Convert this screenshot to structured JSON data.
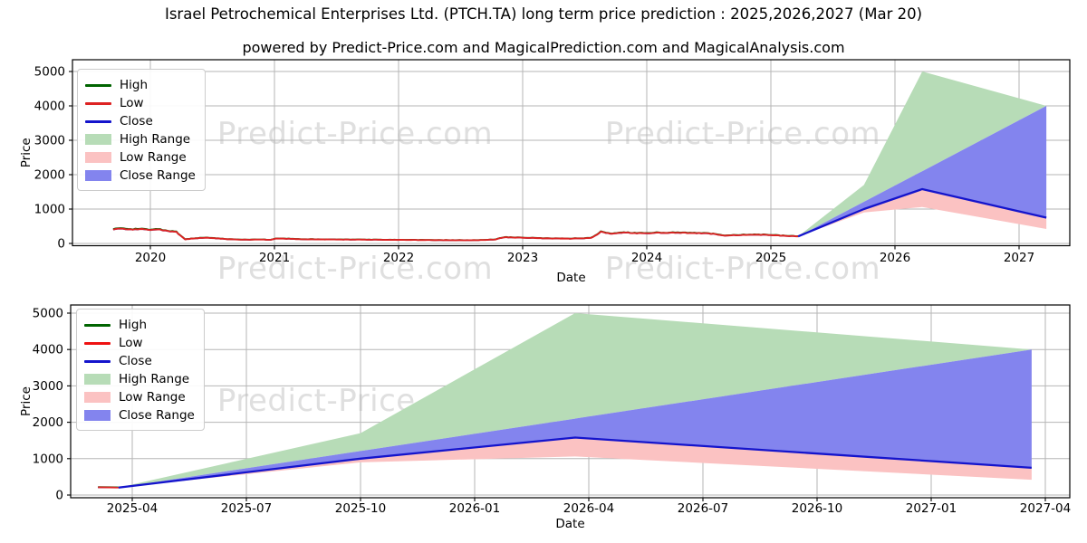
{
  "header": {
    "title": "Israel Petrochemical Enterprises Ltd. (PTCH.TA) long term price prediction : 2025,2026,2027 (Mar 20)",
    "subtitle": "powered by Predict-Price.com and MagicalPrediction.com and MagicalAnalysis.com"
  },
  "watermark": {
    "text": "Predict-Price.com",
    "color": "#dfdfdf"
  },
  "colors": {
    "high_line": "#006400",
    "low_line": "#dd2222",
    "close_line": "#1414cc",
    "high_range_fill": "#b7dcb7",
    "low_range_fill": "#fbc2c2",
    "close_range_fill": "#8384ee",
    "grid": "#b6b6b6",
    "spine": "#000000"
  },
  "chart_data": [
    {
      "type": "line",
      "name": "long-term-history-and-prediction",
      "xlabel": "Date",
      "ylabel": "Price",
      "ylim": [
        0,
        5000
      ],
      "grid": true,
      "legend_position": "upper left",
      "yticks": [
        {
          "v": 0,
          "label": "0"
        },
        {
          "v": 1000,
          "label": "1000"
        },
        {
          "v": 2000,
          "label": "2000"
        },
        {
          "v": 3000,
          "label": "3000"
        },
        {
          "v": 4000,
          "label": "4000"
        },
        {
          "v": 5000,
          "label": "5000"
        }
      ],
      "xticks": [
        {
          "v": 2020,
          "label": "2020"
        },
        {
          "v": 2021,
          "label": "2021"
        },
        {
          "v": 2022,
          "label": "2022"
        },
        {
          "v": 2023,
          "label": "2023"
        },
        {
          "v": 2024,
          "label": "2024"
        },
        {
          "v": 2025,
          "label": "2025"
        },
        {
          "v": 2026,
          "label": "2026"
        },
        {
          "v": 2027,
          "label": "2027"
        }
      ],
      "legend": [
        {
          "label": "High",
          "type": "line",
          "color": "#006400"
        },
        {
          "label": "Low",
          "type": "line",
          "color": "#dd2222"
        },
        {
          "label": "Close",
          "type": "line",
          "color": "#1414cc"
        },
        {
          "label": "High Range",
          "type": "patch",
          "color": "#b7dcb7"
        },
        {
          "label": "Low Range",
          "type": "patch",
          "color": "#fbc2c2"
        },
        {
          "label": "Close Range",
          "type": "patch",
          "color": "#8384ee"
        }
      ],
      "history_anchors": [
        [
          2019.7,
          415
        ],
        [
          2019.78,
          430
        ],
        [
          2019.86,
          415
        ],
        [
          2019.95,
          405
        ],
        [
          2020.02,
          400
        ],
        [
          2020.1,
          390
        ],
        [
          2020.16,
          350
        ],
        [
          2020.21,
          330
        ],
        [
          2020.24,
          240
        ],
        [
          2020.28,
          115
        ],
        [
          2020.33,
          140
        ],
        [
          2020.4,
          160
        ],
        [
          2020.47,
          165
        ],
        [
          2020.53,
          150
        ],
        [
          2020.6,
          130
        ],
        [
          2020.68,
          115
        ],
        [
          2020.78,
          108
        ],
        [
          2020.88,
          112
        ],
        [
          2020.97,
          108
        ],
        [
          2021.02,
          145
        ],
        [
          2021.08,
          140
        ],
        [
          2021.15,
          130
        ],
        [
          2021.25,
          122
        ],
        [
          2021.35,
          118
        ],
        [
          2021.5,
          115
        ],
        [
          2021.65,
          112
        ],
        [
          2021.8,
          108
        ],
        [
          2021.95,
          105
        ],
        [
          2022.1,
          102
        ],
        [
          2022.25,
          98
        ],
        [
          2022.4,
          95
        ],
        [
          2022.55,
          92
        ],
        [
          2022.68,
          100
        ],
        [
          2022.78,
          115
        ],
        [
          2022.85,
          180
        ],
        [
          2022.92,
          175
        ],
        [
          2023.0,
          168
        ],
        [
          2023.08,
          160
        ],
        [
          2023.18,
          150
        ],
        [
          2023.28,
          142
        ],
        [
          2023.38,
          140
        ],
        [
          2023.48,
          150
        ],
        [
          2023.55,
          165
        ],
        [
          2023.6,
          250
        ],
        [
          2023.63,
          355
        ],
        [
          2023.67,
          300
        ],
        [
          2023.72,
          285
        ],
        [
          2023.78,
          305
        ],
        [
          2023.85,
          315
        ],
        [
          2023.92,
          300
        ],
        [
          2024.0,
          298
        ],
        [
          2024.08,
          305
        ],
        [
          2024.17,
          310
        ],
        [
          2024.25,
          305
        ],
        [
          2024.33,
          308
        ],
        [
          2024.42,
          300
        ],
        [
          2024.5,
          290
        ],
        [
          2024.57,
          265
        ],
        [
          2024.63,
          232
        ],
        [
          2024.7,
          240
        ],
        [
          2024.78,
          252
        ],
        [
          2024.85,
          258
        ],
        [
          2024.92,
          252
        ],
        [
          2025.0,
          242
        ],
        [
          2025.08,
          228
        ],
        [
          2025.15,
          215
        ],
        [
          2025.22,
          205
        ]
      ],
      "prediction": {
        "x": [
          2025.22,
          2025.75,
          2026.22,
          2027.22
        ],
        "x_labels": [
          "2025-03",
          "2025-10",
          "2026-03",
          "2027-03"
        ],
        "high_range_upper": [
          205,
          1700,
          5000,
          4000
        ],
        "close_range_upper": [
          205,
          1210,
          2100,
          4000
        ],
        "close": [
          205,
          1000,
          1580,
          750
        ],
        "low_range_lower": [
          205,
          900,
          1060,
          420
        ]
      }
    },
    {
      "type": "line",
      "name": "prediction-zoom",
      "xlabel": "Date",
      "ylabel": "Price",
      "ylim": [
        0,
        5000
      ],
      "grid": true,
      "legend_position": "upper left",
      "yticks": [
        {
          "v": 0,
          "label": "0"
        },
        {
          "v": 1000,
          "label": "1000"
        },
        {
          "v": 2000,
          "label": "2000"
        },
        {
          "v": 3000,
          "label": "3000"
        },
        {
          "v": 4000,
          "label": "4000"
        },
        {
          "v": 5000,
          "label": "5000"
        }
      ],
      "xticks": [
        {
          "v": 2025.25,
          "label": "2025-04"
        },
        {
          "v": 2025.5,
          "label": "2025-07"
        },
        {
          "v": 2025.75,
          "label": "2025-10"
        },
        {
          "v": 2026.0,
          "label": "2026-01"
        },
        {
          "v": 2026.25,
          "label": "2026-04"
        },
        {
          "v": 2026.5,
          "label": "2026-07"
        },
        {
          "v": 2026.75,
          "label": "2026-10"
        },
        {
          "v": 2027.0,
          "label": "2027-01"
        },
        {
          "v": 2027.25,
          "label": "2027-04"
        }
      ],
      "legend": [
        {
          "label": "High",
          "type": "line",
          "color": "#006400"
        },
        {
          "label": "Low",
          "type": "line",
          "color": "#ee1111"
        },
        {
          "label": "Close",
          "type": "line",
          "color": "#1414cc"
        },
        {
          "label": "High Range",
          "type": "patch",
          "color": "#b7dcb7"
        },
        {
          "label": "Low Range",
          "type": "patch",
          "color": "#fbc2c2"
        },
        {
          "label": "Close Range",
          "type": "patch",
          "color": "#8384ee"
        }
      ],
      "history_anchors": [
        [
          2025.175,
          212
        ],
        [
          2025.22,
          206
        ]
      ],
      "prediction": {
        "x": [
          2025.22,
          2025.75,
          2026.22,
          2027.22
        ],
        "x_labels": [
          "2025-03",
          "2025-10",
          "2026-03",
          "2027-03"
        ],
        "high_range_upper": [
          205,
          1700,
          5000,
          4000
        ],
        "close_range_upper": [
          205,
          1210,
          2100,
          4000
        ],
        "close": [
          205,
          1000,
          1580,
          750
        ],
        "low_range_lower": [
          205,
          900,
          1060,
          420
        ]
      }
    }
  ]
}
